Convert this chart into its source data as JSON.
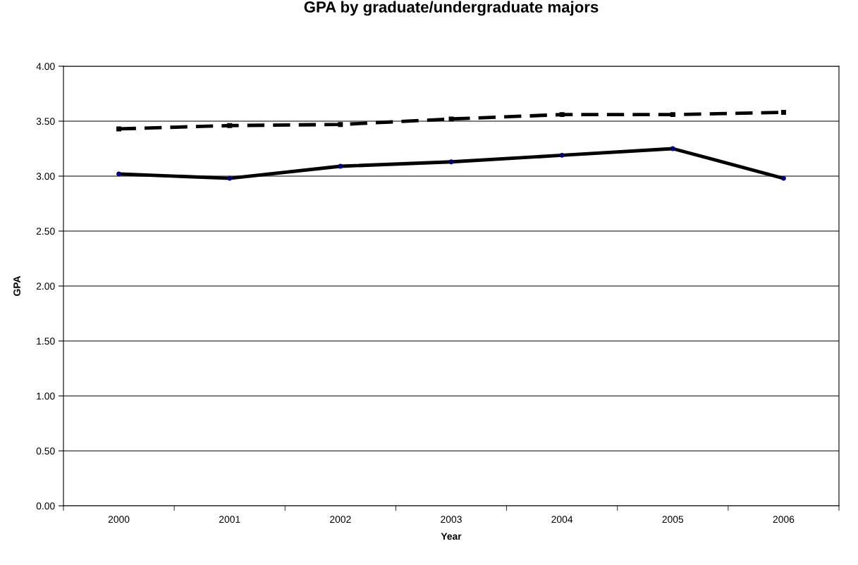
{
  "chart_data": {
    "type": "line",
    "title": "GPA by graduate/undergraduate majors",
    "xlabel": "Year",
    "ylabel": "GPA",
    "categories": [
      "2000",
      "2001",
      "2002",
      "2003",
      "2004",
      "2005",
      "2006"
    ],
    "series": [
      {
        "color": "#000000",
        "line_style": "dashed",
        "marker": "square",
        "values": [
          3.43,
          3.46,
          3.47,
          3.52,
          3.56,
          3.56,
          3.58
        ]
      },
      {
        "color": "#000000",
        "line_style": "solid",
        "marker": "circle",
        "values": [
          3.02,
          2.98,
          3.09,
          3.13,
          3.19,
          3.25,
          2.98
        ]
      }
    ],
    "ylim": [
      0,
      4
    ],
    "yticks": [
      {
        "value": 0,
        "label": "0.00"
      },
      {
        "value": 0.5,
        "label": "0.50"
      },
      {
        "value": 1,
        "label": "1.00"
      },
      {
        "value": 1.5,
        "label": "1.50"
      },
      {
        "value": 2,
        "label": "2.00"
      },
      {
        "value": 2.5,
        "label": "2.50"
      },
      {
        "value": 3,
        "label": "3.00"
      },
      {
        "value": 3.5,
        "label": "3.50"
      },
      {
        "value": 4,
        "label": "4.00"
      }
    ],
    "grid": "y"
  }
}
